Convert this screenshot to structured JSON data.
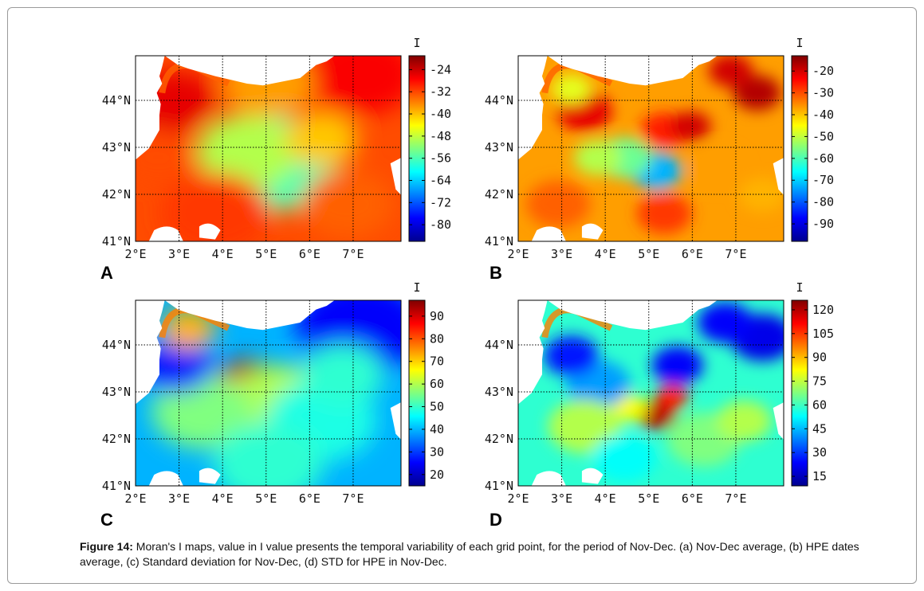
{
  "chart_data": [
    {
      "type": "heatmap",
      "panel": "A",
      "colorbar_title": "I",
      "colorbar_ticks": [
        "-24",
        "-32",
        "-40",
        "-48",
        "-56",
        "-64",
        "-72",
        "-80"
      ],
      "colorbar_values": [
        -24,
        -32,
        -40,
        -48,
        -56,
        -64,
        -72,
        -80
      ],
      "range": [
        -86,
        -19
      ],
      "x_ticks": [
        "2°E",
        "3°E",
        "4°E",
        "5°E",
        "6°E",
        "7°E"
      ],
      "y_ticks": [
        "44°N",
        "43°N",
        "42°N",
        "41°N"
      ],
      "lon_range": [
        2,
        8.1
      ],
      "lat_range": [
        41,
        44.95
      ]
    },
    {
      "type": "heatmap",
      "panel": "B",
      "colorbar_title": "I",
      "colorbar_ticks": [
        "-20",
        "-30",
        "-40",
        "-50",
        "-60",
        "-70",
        "-80",
        "-90"
      ],
      "colorbar_values": [
        -20,
        -30,
        -40,
        -50,
        -60,
        -70,
        -80,
        -90
      ],
      "range": [
        -98,
        -13
      ],
      "x_ticks": [
        "2°E",
        "3°E",
        "4°E",
        "5°E",
        "6°E",
        "7°E"
      ],
      "y_ticks": [
        "44°N",
        "43°N",
        "42°N",
        "41°N"
      ],
      "lon_range": [
        2,
        8.1
      ],
      "lat_range": [
        41,
        44.95
      ]
    },
    {
      "type": "heatmap",
      "panel": "C",
      "colorbar_title": "I",
      "colorbar_ticks": [
        "90",
        "80",
        "70",
        "60",
        "50",
        "40",
        "30",
        "20"
      ],
      "colorbar_values": [
        90,
        80,
        70,
        60,
        50,
        40,
        30,
        20
      ],
      "range": [
        15,
        97
      ],
      "x_ticks": [
        "2°E",
        "3°E",
        "4°E",
        "5°E",
        "6°E",
        "7°E"
      ],
      "y_ticks": [
        "44°N",
        "43°N",
        "42°N",
        "41°N"
      ],
      "lon_range": [
        2,
        8.1
      ],
      "lat_range": [
        41,
        44.95
      ]
    },
    {
      "type": "heatmap",
      "panel": "D",
      "colorbar_title": "I",
      "colorbar_ticks": [
        "120",
        "105",
        "90",
        "75",
        "60",
        "45",
        "30",
        "15"
      ],
      "colorbar_values": [
        120,
        105,
        90,
        75,
        60,
        45,
        30,
        15
      ],
      "range": [
        9,
        126
      ],
      "x_ticks": [
        "2°E",
        "3°E",
        "4°E",
        "5°E",
        "6°E",
        "7°E"
      ],
      "y_ticks": [
        "44°N",
        "43°N",
        "42°N",
        "41°N"
      ],
      "lon_range": [
        2,
        8.1
      ],
      "lat_range": [
        41,
        44.95
      ]
    }
  ],
  "panel_labels": [
    "A",
    "B",
    "C",
    "D"
  ],
  "caption": {
    "label": "Figure 14:",
    "text": " Moran's I maps, value in I value presents the temporal variability of each grid point, for the period of Nov-Dec.  (a) Nov-Dec average, (b) HPE dates average, (c) Standard deviation for Nov-Dec, (d) STD for HPE in Nov-Dec."
  },
  "colors": {
    "map_fill_warm": "#f0801e",
    "map_fill_cool": "#2f6fe6",
    "land": "#ffffff",
    "grid": "#000000"
  }
}
